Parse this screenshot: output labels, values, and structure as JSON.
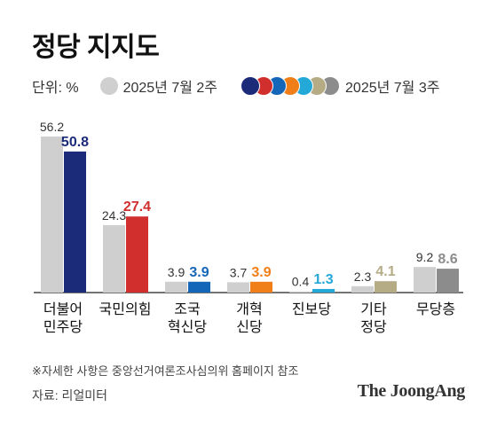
{
  "header": {
    "title": "정당 지지도"
  },
  "legend": {
    "unit": "단위: %",
    "prev_label": "2025년 7월 2주",
    "curr_label": "2025년 7월 3주"
  },
  "colors": {
    "previous": "#cfcfcf",
    "parties": [
      "#1b2b7a",
      "#d12e2e",
      "#1466b8",
      "#f07f1a",
      "#24a8d8",
      "#b5ac86",
      "#8c8c8c"
    ]
  },
  "chart_data": {
    "type": "bar",
    "categories": [
      [
        "더불어",
        "민주당"
      ],
      [
        "국민의힘"
      ],
      [
        "조국",
        "혁신당"
      ],
      [
        "개혁",
        "신당"
      ],
      [
        "진보당"
      ],
      [
        "기타",
        "정당"
      ],
      [
        "무당층"
      ]
    ],
    "series": [
      {
        "name": "2025년 7월 2주",
        "values": [
          56.2,
          24.3,
          3.9,
          3.7,
          0.4,
          2.3,
          9.2
        ]
      },
      {
        "name": "2025년 7월 3주",
        "values": [
          50.8,
          27.4,
          3.9,
          3.9,
          1.3,
          4.1,
          8.6
        ]
      }
    ],
    "value_labels": {
      "previous": [
        "56.2",
        "24.3",
        "3.9",
        "3.7",
        "0.4",
        "2.3",
        "9.2"
      ],
      "current": [
        "50.8",
        "27.4",
        "3.9",
        "3.9",
        "1.3",
        "4.1",
        "8.6"
      ]
    },
    "ylim": [
      0,
      60
    ],
    "grid": false,
    "legend_position": "top"
  },
  "footer": {
    "note": "※자세한 사항은 중앙선거여론조사심의위 홈페이지 참조",
    "source": "자료: 리얼미터",
    "brand": "The JoongAng"
  }
}
